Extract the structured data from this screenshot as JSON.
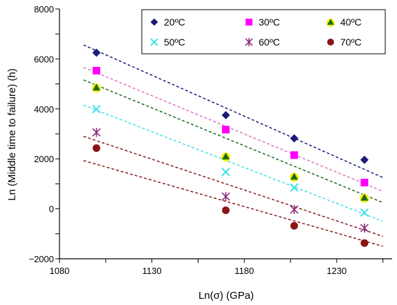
{
  "chart_data": {
    "type": "scatter",
    "xlabel": "Ln(σ) (GPa)",
    "ylabel": "Ln (Middle time to failure) (h)",
    "xlim": [
      1080,
      1260
    ],
    "ylim": [
      -2000,
      8000
    ],
    "xticks": [
      "1080",
      "1130",
      "1180",
      "1230"
    ],
    "yticks": [
      "8000",
      "6000",
      "4000",
      "2000",
      "0",
      "−2000"
    ],
    "x_tick_values": [
      1080,
      1130,
      1180,
      1230
    ],
    "y_tick_values": [
      8000,
      6000,
      4000,
      2000,
      0,
      -2000
    ],
    "grid": false,
    "legend_position": "top-right",
    "series": [
      {
        "name": "20ºC",
        "marker": "diamond",
        "color": "#1c1c78",
        "x": [
          1100,
          1170,
          1207,
          1245
        ],
        "y": [
          6250,
          3750,
          2820,
          1960
        ],
        "trend": {
          "x": [
            1093,
            1255
          ],
          "y": [
            6560,
            1250
          ]
        },
        "trend_color": "#1c1c78"
      },
      {
        "name": "30ºC",
        "marker": "square",
        "color": "#ff00ff",
        "x": [
          1100,
          1170,
          1207,
          1245
        ],
        "y": [
          5530,
          3170,
          2150,
          1050
        ],
        "trend": {
          "x": [
            1093,
            1255
          ],
          "y": [
            5660,
            700
          ]
        },
        "trend_color": "#e070c0"
      },
      {
        "name": "40ºC",
        "marker": "triangle",
        "color": "#1a6a1a",
        "x": [
          1100,
          1170,
          1207,
          1245
        ],
        "y": [
          4860,
          2100,
          1290,
          450
        ],
        "trend": {
          "x": [
            1093,
            1255
          ],
          "y": [
            5160,
            250
          ]
        },
        "trend_color": "#1a6a1a"
      },
      {
        "name": "50ºC",
        "marker": "x",
        "color": "#40e0e8",
        "x": [
          1100,
          1170,
          1207,
          1245
        ],
        "y": [
          3990,
          1470,
          850,
          -150
        ],
        "trend": {
          "x": [
            1093,
            1255
          ],
          "y": [
            4150,
            -500
          ]
        },
        "trend_color": "#40e0e8"
      },
      {
        "name": "60ºC",
        "marker": "star",
        "color": "#8a2a7a",
        "x": [
          1100,
          1170,
          1207,
          1245
        ],
        "y": [
          3060,
          490,
          -30,
          -770
        ],
        "trend": {
          "x": [
            1093,
            1255
          ],
          "y": [
            2900,
            -1100
          ]
        },
        "trend_color": "#8a1a1a"
      },
      {
        "name": "70ºC",
        "marker": "circle",
        "color": "#8a1414",
        "x": [
          1100,
          1170,
          1207,
          1245
        ],
        "y": [
          2430,
          -60,
          -680,
          -1370
        ],
        "trend": {
          "x": [
            1093,
            1255
          ],
          "y": [
            1930,
            -1500
          ]
        },
        "trend_color": "#8a1a1a"
      }
    ]
  }
}
